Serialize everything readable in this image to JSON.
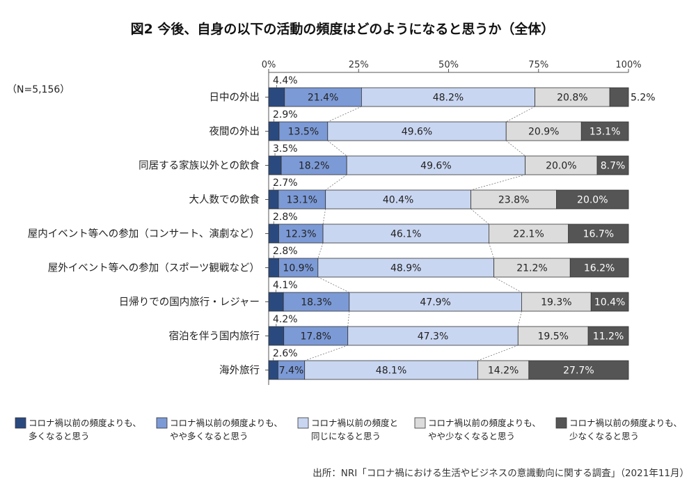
{
  "chart_data": {
    "type": "bar",
    "stacked": true,
    "orientation": "horizontal",
    "title": "図2 今後、自身の以下の活動の頻度はどのようになると思うか（全体）",
    "sample_note": "（N=5,156）",
    "x_ticks": [
      "0%",
      "25%",
      "50%",
      "75%",
      "100%"
    ],
    "xlim": [
      0,
      100
    ],
    "grid": false,
    "legend_position": "bottom",
    "categories": [
      "日中の外出",
      "夜間の外出",
      "同居する家族以外との飲食",
      "大人数での飲食",
      "屋内イベント等への参加（コンサート、演劇など）",
      "屋外イベント等への参加（スポーツ観戦など）",
      "日帰りでの国内旅行・レジャー",
      "宿泊を伴う国内旅行",
      "海外旅行"
    ],
    "series": [
      {
        "name": "コロナ禍以前の頻度よりも、多くなると思う",
        "legend_lines": [
          "コロナ禍以前の頻度よりも、",
          "多くなると思う"
        ],
        "color": "#2a4a7f",
        "values": [
          4.4,
          2.9,
          3.5,
          2.7,
          2.8,
          2.8,
          4.1,
          4.2,
          2.6
        ],
        "labels": [
          "4.4%",
          "2.9%",
          "3.5%",
          "2.7%",
          "2.8%",
          "2.8%",
          "4.1%",
          "4.2%",
          "2.6%"
        ]
      },
      {
        "name": "コロナ禍以前の頻度よりも、やや多くなると思う",
        "legend_lines": [
          "コロナ禍以前の頻度よりも、",
          "やや多くなると思う"
        ],
        "color": "#7c9ad6",
        "values": [
          21.4,
          13.5,
          18.2,
          13.1,
          12.3,
          10.9,
          18.3,
          17.8,
          7.4
        ],
        "labels": [
          "21.4%",
          "13.5%",
          "18.2%",
          "13.1%",
          "12.3%",
          "10.9%",
          "18.3%",
          "17.8%",
          "7.4%"
        ]
      },
      {
        "name": "コロナ禍以前の頻度と同じになると思う",
        "legend_lines": [
          "コロナ禍以前の頻度と",
          "同じになると思う"
        ],
        "color": "#c9d6f1",
        "values": [
          48.2,
          49.6,
          49.6,
          40.4,
          46.1,
          48.9,
          47.9,
          47.3,
          48.1
        ],
        "labels": [
          "48.2%",
          "49.6%",
          "49.6%",
          "40.4%",
          "46.1%",
          "48.9%",
          "47.9%",
          "47.3%",
          "48.1%"
        ]
      },
      {
        "name": "コロナ禍以前の頻度よりも、やや少なくなると思う",
        "legend_lines": [
          "コロナ禍以前の頻度よりも、",
          "やや少なくなると思う"
        ],
        "color": "#dcdcdc",
        "values": [
          20.8,
          20.9,
          20.0,
          23.8,
          22.1,
          21.2,
          19.3,
          19.5,
          14.2
        ],
        "labels": [
          "20.8%",
          "20.9%",
          "20.0%",
          "23.8%",
          "22.1%",
          "21.2%",
          "19.3%",
          "19.5%",
          "14.2%"
        ]
      },
      {
        "name": "コロナ禍以前の頻度よりも、少なくなると思う",
        "legend_lines": [
          "コロナ禍以前の頻度よりも、",
          "少なくなると思う"
        ],
        "color": "#555555",
        "values": [
          5.2,
          13.1,
          8.7,
          20.0,
          16.7,
          16.2,
          10.4,
          11.2,
          27.7
        ],
        "labels": [
          "5.2%",
          "13.1%",
          "8.7%",
          "20.0%",
          "16.7%",
          "16.2%",
          "10.4%",
          "11.2%",
          "27.7%"
        ]
      }
    ],
    "source": "出所：NRI「コロナ禍における生活やビジネスの意識動向に関する調査」（2021年11月）"
  }
}
